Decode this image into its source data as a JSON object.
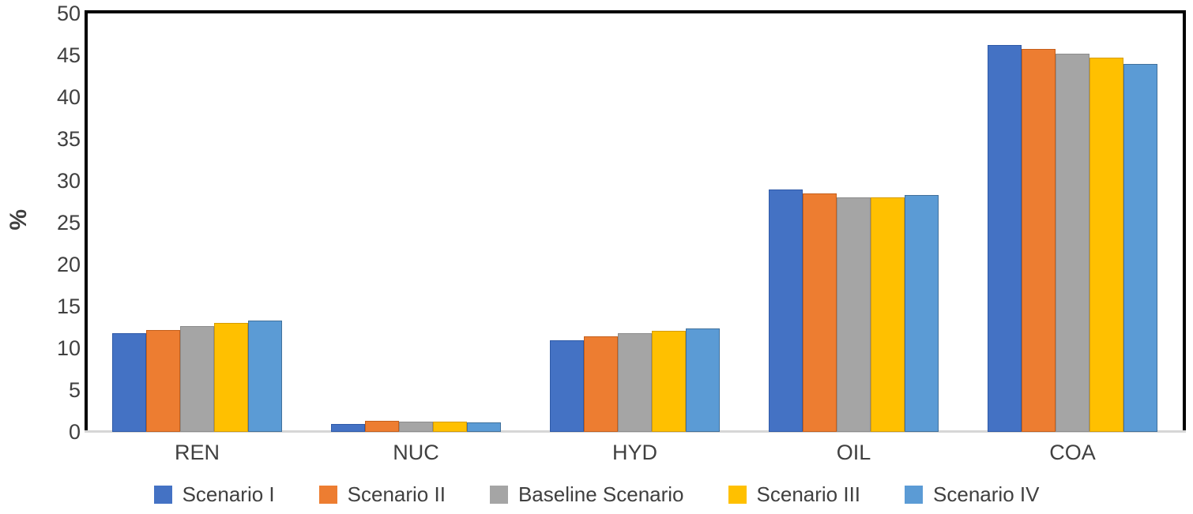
{
  "chart": {
    "background_color": "#ffffff",
    "text_color": "#404040",
    "plot_border_color": "#000000",
    "x_axis_line_color": "#d6d6d6"
  },
  "chart_data": {
    "type": "bar",
    "title": "",
    "xlabel": "",
    "ylabel": "%",
    "ylim": [
      0,
      50
    ],
    "ytick_interval": 5,
    "yticks": [
      0,
      5,
      10,
      15,
      20,
      25,
      30,
      35,
      40,
      45,
      50
    ],
    "grid": false,
    "legend_position": "bottom",
    "categories": [
      "REN",
      "NUC",
      "HYD",
      "OIL",
      "COA"
    ],
    "series": [
      {
        "name": "Scenario I",
        "color": "#4472C4",
        "border_color": "#2f5aa8",
        "values": [
          11.8,
          0.9,
          10.9,
          29.0,
          46.2
        ]
      },
      {
        "name": "Scenario II",
        "color": "#ED7D31",
        "border_color": "#c55f1b",
        "values": [
          12.2,
          1.3,
          11.4,
          28.5,
          45.8
        ]
      },
      {
        "name": "Baseline Scenario",
        "color": "#A5A5A5",
        "border_color": "#8c8c8c",
        "values": [
          12.6,
          1.2,
          11.8,
          28.0,
          45.2
        ]
      },
      {
        "name": "Scenario III",
        "color": "#FFC000",
        "border_color": "#d69c00",
        "values": [
          13.0,
          1.2,
          12.1,
          28.0,
          44.7
        ]
      },
      {
        "name": "Scenario IV",
        "color": "#5B9BD5",
        "border_color": "#41719C",
        "values": [
          13.3,
          1.1,
          12.4,
          28.3,
          44.0
        ]
      }
    ]
  }
}
